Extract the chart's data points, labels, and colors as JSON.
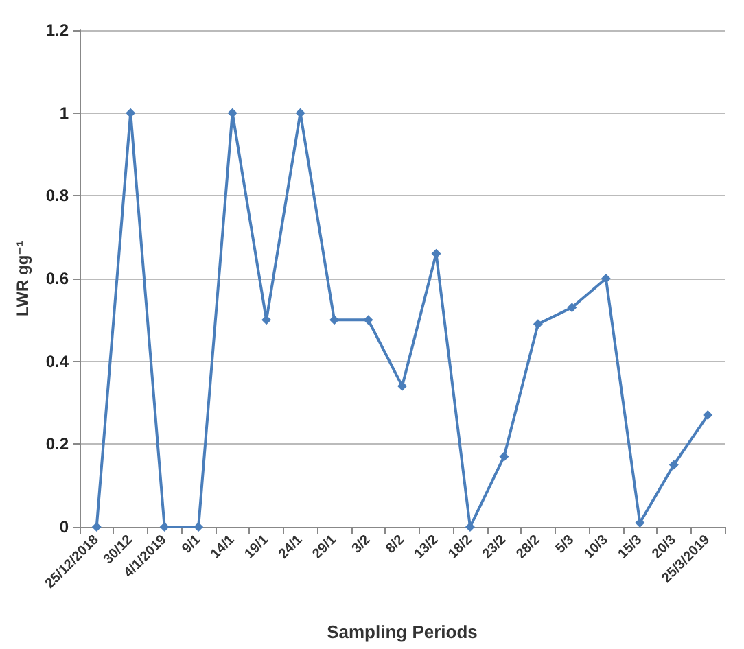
{
  "chart_data": {
    "type": "line",
    "xlabel": "Sampling Periods",
    "ylabel": "LWR gg⁻¹",
    "categories": [
      "25/12/2018",
      "30/12",
      "4/1/2019",
      "9/1",
      "14/1",
      "19/1",
      "24/1",
      "29/1",
      "3/2",
      "8/2",
      "13/2",
      "18/2",
      "23/2",
      "28/2",
      "5/3",
      "10/3",
      "15/3",
      "20/3",
      "25/3/2019"
    ],
    "series": [
      {
        "color": "#4a7ebb",
        "values": [
          0,
          1,
          0,
          0,
          1,
          0.5,
          1,
          0.5,
          0.5,
          0.34,
          0.66,
          0,
          0.17,
          0.49,
          0.53,
          0.6,
          0.01,
          0.15,
          0.27
        ]
      }
    ],
    "ylim": [
      0,
      1.2
    ],
    "yticks": [
      0,
      0.2,
      0.4,
      0.6,
      0.8,
      1,
      1.2
    ],
    "grid": "y",
    "marker": "diamond",
    "line_style": "solid"
  }
}
